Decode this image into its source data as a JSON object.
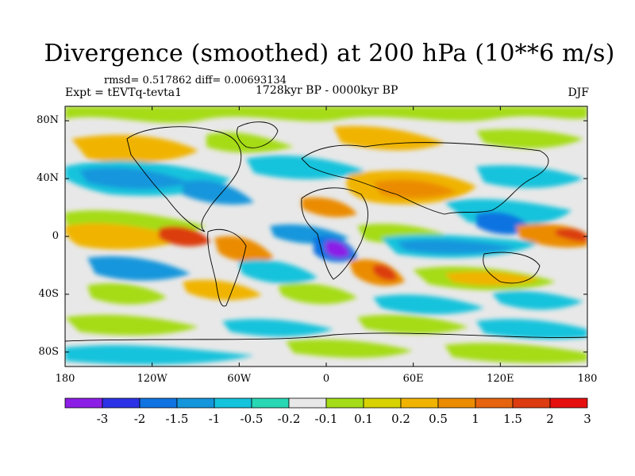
{
  "figure": {
    "title": "Divergence (smoothed) at 200 hPa (10**6 m/s)",
    "stats": "rmsd= 0.517862 diff= 0.00693134",
    "experiment": "Expt = tEVTq-tevta1",
    "period": "1728kyr BP - 0000kyr BP",
    "season": "DJF"
  },
  "map": {
    "lat_ticks": [
      "80N",
      "40N",
      "0",
      "40S",
      "80S"
    ],
    "lon_ticks": [
      "180",
      "120W",
      "60W",
      "0",
      "60E",
      "120E",
      "180"
    ],
    "lat_values": [
      80,
      40,
      0,
      -40,
      -80
    ],
    "lon_values": [
      -180,
      -120,
      -60,
      0,
      60,
      120,
      180
    ],
    "lat_range": [
      -90,
      90
    ],
    "lon_range": [
      -180,
      180
    ]
  },
  "colorbar": {
    "colors": [
      "#8c1ee6",
      "#2d32e6",
      "#0f73e1",
      "#1496dc",
      "#14c3dc",
      "#28d7b4",
      "#e8e8e8",
      "#a5dc19",
      "#d7d200",
      "#f0b400",
      "#eb8c00",
      "#e6640f",
      "#dc3c0f",
      "#e60f0f"
    ],
    "labels": [
      "-3",
      "-2",
      "-1.5",
      "-1",
      "-0.5",
      "-0.2",
      "-0.1",
      "0.1",
      "0.2",
      "0.5",
      "1",
      "1.5",
      "2",
      "3"
    ]
  }
}
